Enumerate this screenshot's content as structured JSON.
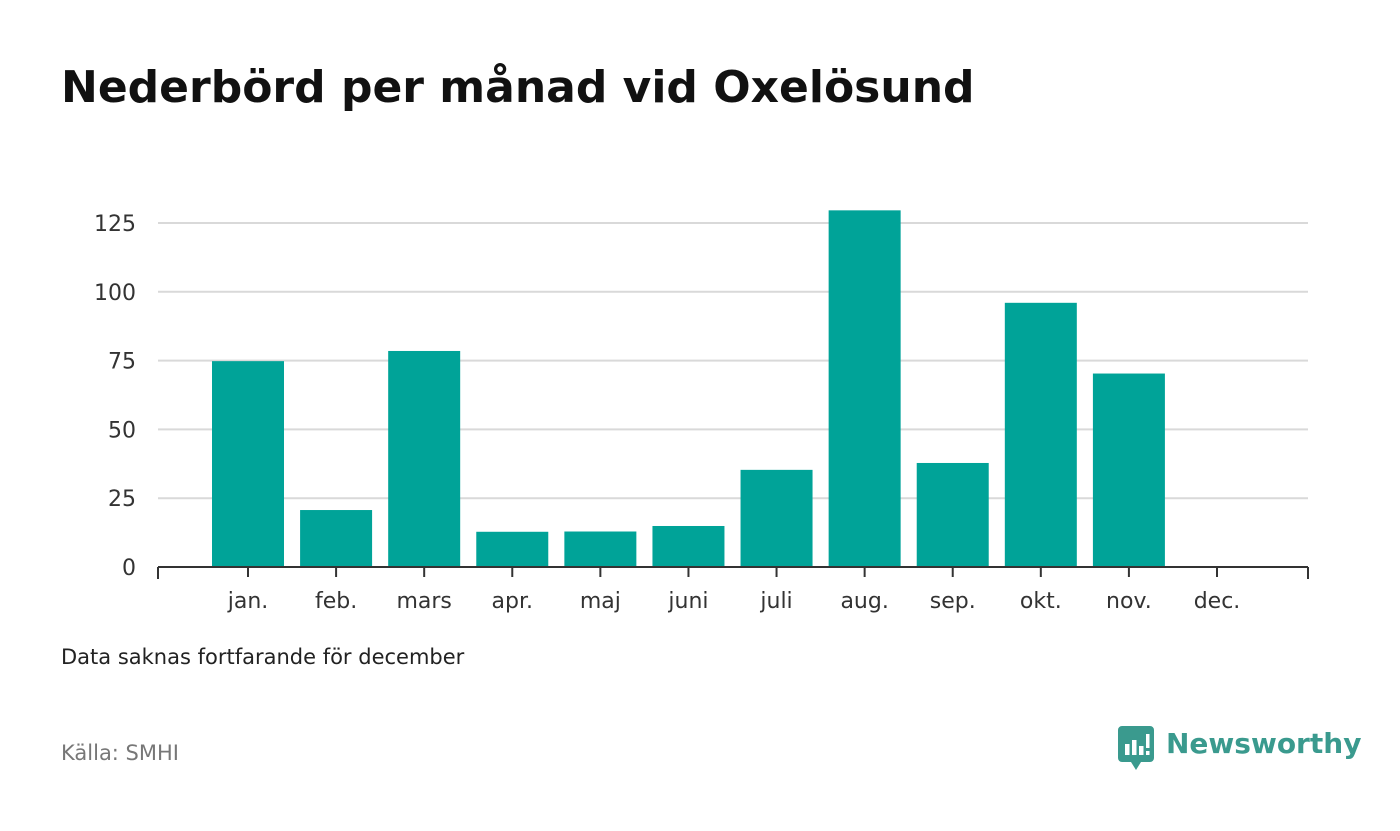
{
  "title": "Nederbörd per månad vid Oxelösund",
  "note": "Data saknas fortfarande för december",
  "source": "Källa: SMHI",
  "brand": {
    "name": "Newsworthy",
    "icon": "newsworthy-logo-icon",
    "color": "#3a9a8e"
  },
  "chart_data": {
    "type": "bar",
    "title": "Nederbörd per månad vid Oxelösund",
    "xlabel": "",
    "ylabel": "",
    "categories": [
      "jan.",
      "feb.",
      "mars",
      "apr.",
      "maj",
      "juni",
      "juli",
      "aug.",
      "sep.",
      "okt.",
      "nov.",
      "dec."
    ],
    "values": [
      74.8,
      20.7,
      78.5,
      12.8,
      12.9,
      14.9,
      35.3,
      129.6,
      37.8,
      96.0,
      70.3,
      null
    ],
    "yticks": [
      0,
      25,
      50,
      75,
      100,
      125
    ],
    "ylim": [
      0,
      130
    ],
    "grid": true,
    "legend": "none",
    "bar_color": "#00a398"
  }
}
